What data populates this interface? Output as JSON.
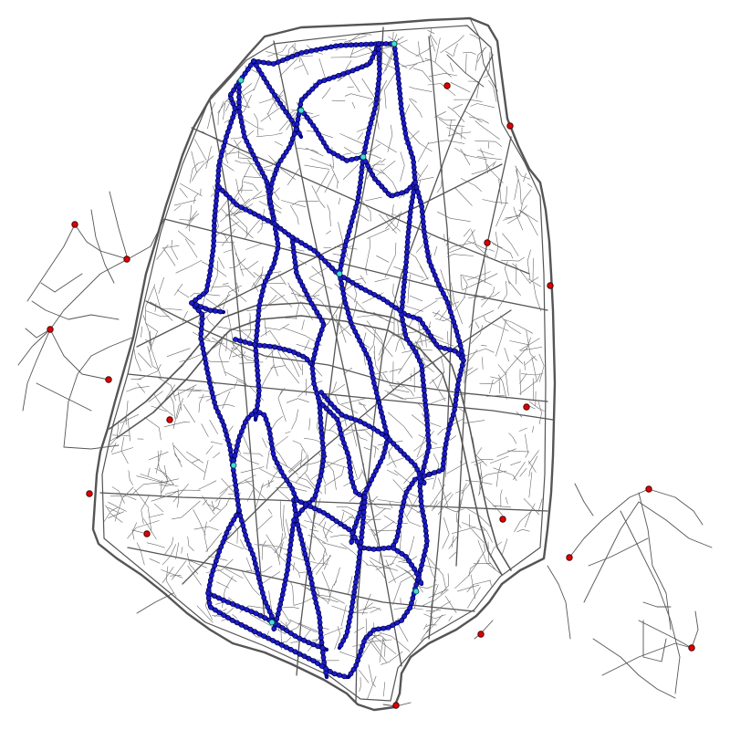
{
  "map": {
    "colors": {
      "background": "#ffffff",
      "street_network": "#555555",
      "street_minor": "#6a6a6a",
      "route_line": "#00008b",
      "route_node_fill": "#1c1cc8",
      "route_node_stroke": "#000044",
      "station_fill": "#40e0d0",
      "external_node_fill": "#e00000",
      "external_node_stroke": "#4a0000"
    },
    "layers": [
      {
        "id": "streets",
        "kind": "street-network"
      },
      {
        "id": "routes",
        "kind": "route-lines-with-nodes"
      },
      {
        "id": "stations",
        "kind": "station-markers"
      },
      {
        "id": "external",
        "kind": "external-nodes"
      }
    ]
  }
}
